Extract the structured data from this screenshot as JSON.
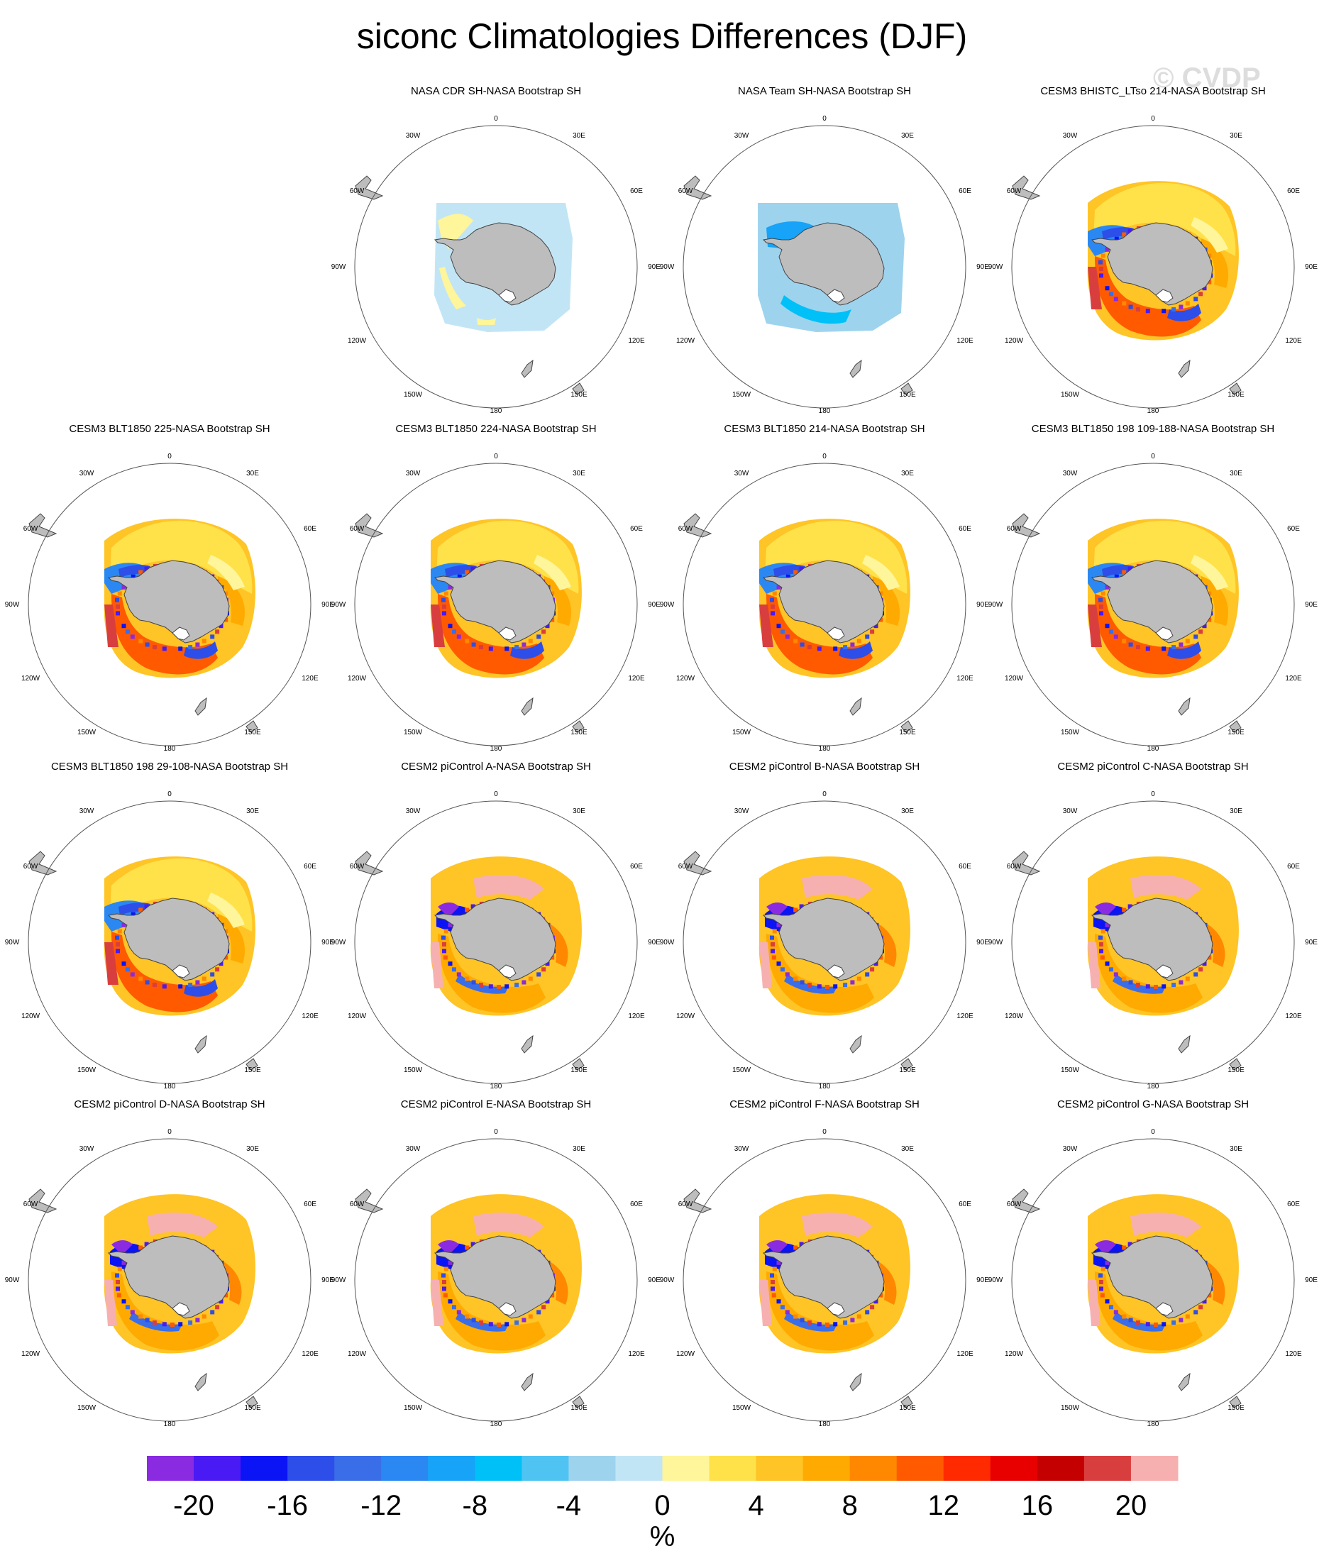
{
  "title": "siconc Climatologies Differences (DJF)",
  "watermark": "© CVDP",
  "chart_data": {
    "type": "heatmap",
    "projection": "south polar stereographic",
    "variable": "siconc",
    "season": "DJF",
    "longitude_labels": [
      "0",
      "30E",
      "60E",
      "90E",
      "120E",
      "150E",
      "180",
      "150W",
      "120W",
      "90W",
      "60W",
      "30W"
    ],
    "colors": {
      "land": "#bdbdbd",
      "coast": "#444444",
      "circle": "#555555"
    },
    "colorbar": {
      "unit": "%",
      "tick_labels": [
        "-20",
        "-16",
        "-12",
        "-8",
        "-4",
        "0",
        "4",
        "8",
        "12",
        "16",
        "20"
      ],
      "colors": [
        "#8a2be2",
        "#4a1af5",
        "#0a14f5",
        "#2d4ee8",
        "#3a6ee8",
        "#2b88f2",
        "#17a3f7",
        "#00c0f8",
        "#4fc4f2",
        "#9ed3ee",
        "#c2e5f6",
        "#fff59a",
        "#ffe14a",
        "#ffc425",
        "#ffaa00",
        "#ff8800",
        "#ff5a00",
        "#ff2a00",
        "#e80000",
        "#c40000",
        "#d93e3e",
        "#f7b0b0"
      ]
    },
    "panels": [
      {
        "title": "NASA CDR SH-NASA Bootstrap SH",
        "pattern": "cdr"
      },
      {
        "title": "NASA Team SH-NASA Bootstrap SH",
        "pattern": "team"
      },
      {
        "title": "CESM3 BHISTC_LTso 214-NASA Bootstrap SH",
        "pattern": "model_a"
      },
      {
        "title": "CESM3 BLT1850 225-NASA Bootstrap SH",
        "pattern": "model_a"
      },
      {
        "title": "CESM3 BLT1850 224-NASA Bootstrap SH",
        "pattern": "model_a"
      },
      {
        "title": "CESM3 BLT1850 214-NASA Bootstrap SH",
        "pattern": "model_a"
      },
      {
        "title": "CESM3 BLT1850 198 109-188-NASA Bootstrap SH",
        "pattern": "model_a"
      },
      {
        "title": "CESM3 BLT1850 198 29-108-NASA Bootstrap SH",
        "pattern": "model_a"
      },
      {
        "title": "CESM2 piControl A-NASA Bootstrap SH",
        "pattern": "model_b"
      },
      {
        "title": "CESM2 piControl B-NASA Bootstrap SH",
        "pattern": "model_b"
      },
      {
        "title": "CESM2 piControl C-NASA Bootstrap SH",
        "pattern": "model_b"
      },
      {
        "title": "CESM2 piControl D-NASA Bootstrap SH",
        "pattern": "model_b"
      },
      {
        "title": "CESM2 piControl E-NASA Bootstrap SH",
        "pattern": "model_b"
      },
      {
        "title": "CESM2 piControl F-NASA Bootstrap SH",
        "pattern": "model_b"
      },
      {
        "title": "CESM2 piControl G-NASA Bootstrap SH",
        "pattern": "model_b"
      }
    ]
  }
}
